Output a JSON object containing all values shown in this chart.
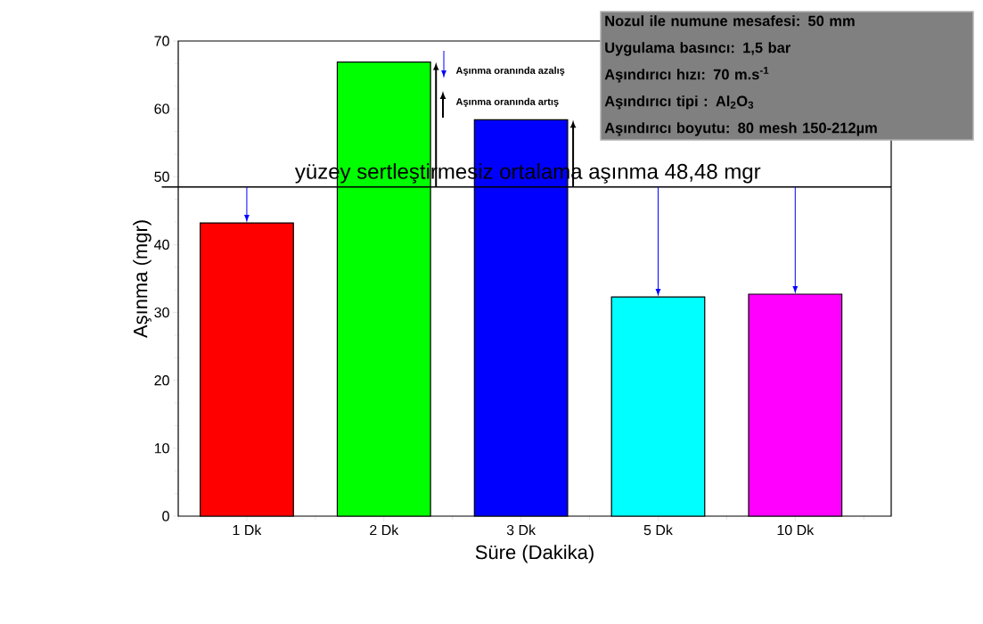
{
  "chart_data": {
    "type": "bar",
    "xlabel": "Süre (Dakika)",
    "ylabel": "Aşınma (mgr)",
    "categories": [
      "1 Dk",
      "2 Dk",
      "3 Dk",
      "5 Dk",
      "10 Dk"
    ],
    "values": [
      43.2,
      66.9,
      58.4,
      32.3,
      32.7
    ],
    "colors": [
      "#ff0000",
      "#00ff00",
      "#0000ff",
      "#00ffff",
      "#ff00ff"
    ],
    "ylim": [
      0,
      70
    ],
    "yticks": [
      0,
      10,
      20,
      30,
      40,
      50,
      60,
      70
    ],
    "ref_lines": [
      {
        "axis": "y",
        "value": 48.48,
        "label": "yüzey sertleştirmesiz ortalama aşınma 48,48 mgr",
        "color": "#000000"
      }
    ],
    "annotations": [
      "Aşınma oranında azalış",
      "Aşınma oranında artış",
      "Nozul ile numune mesafesi: 50 mm",
      "Uygulama basıncı: 1,5 bar",
      "Aşındırıcı hızı: 70 m.s$^{-1}$",
      "Aşındırıcı tipi : Al$_{2}$O$_{3}$",
      "Aşındırıcı boyutu: 80 mesh 150-212µm"
    ]
  }
}
